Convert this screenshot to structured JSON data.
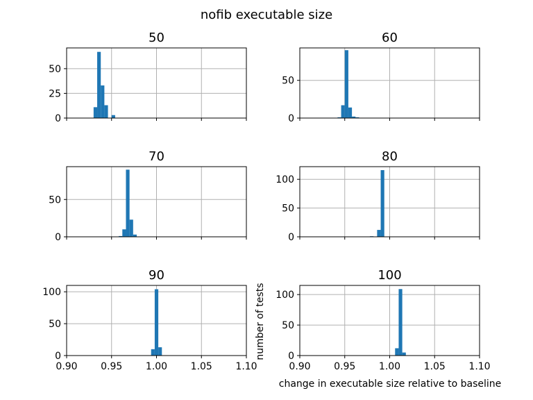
{
  "figure": {
    "title": "nofib executable size",
    "xlabel": "change in executable size relative to baseline",
    "ylabel": "number of tests"
  },
  "colors": {
    "bar": "#1f77b4",
    "grid": "#b0b0b0"
  },
  "chart_data": [
    {
      "type": "bar",
      "title": "50",
      "xlim": [
        0.9,
        1.1
      ],
      "ylim": [
        0,
        71
      ],
      "xticks": [
        "0.90",
        "0.95",
        "1.00",
        "1.05",
        "1.10"
      ],
      "yticks": [
        0,
        25,
        50
      ],
      "grid": true,
      "bin_width": 0.004,
      "bins": [
        {
          "x": 0.93,
          "value": 11
        },
        {
          "x": 0.934,
          "value": 67
        },
        {
          "x": 0.938,
          "value": 33
        },
        {
          "x": 0.942,
          "value": 13
        },
        {
          "x": 0.95,
          "value": 3
        }
      ]
    },
    {
      "type": "bar",
      "title": "60",
      "xlim": [
        0.9,
        1.1
      ],
      "ylim": [
        0,
        93
      ],
      "xticks": [
        "0.90",
        "0.95",
        "1.00",
        "1.05",
        "1.10"
      ],
      "yticks": [
        0,
        50
      ],
      "grid": true,
      "bin_width": 0.004,
      "bins": [
        {
          "x": 0.942,
          "value": 1
        },
        {
          "x": 0.946,
          "value": 17
        },
        {
          "x": 0.95,
          "value": 90
        },
        {
          "x": 0.954,
          "value": 14
        },
        {
          "x": 0.958,
          "value": 2
        },
        {
          "x": 0.962,
          "value": 1
        }
      ]
    },
    {
      "type": "bar",
      "title": "70",
      "xlim": [
        0.9,
        1.1
      ],
      "ylim": [
        0,
        94
      ],
      "xticks": [
        "0.90",
        "0.95",
        "1.00",
        "1.05",
        "1.10"
      ],
      "yticks": [
        0,
        50
      ],
      "grid": true,
      "bin_width": 0.004,
      "bins": [
        {
          "x": 0.958,
          "value": 1
        },
        {
          "x": 0.962,
          "value": 10
        },
        {
          "x": 0.966,
          "value": 90
        },
        {
          "x": 0.97,
          "value": 23
        },
        {
          "x": 0.974,
          "value": 3
        }
      ]
    },
    {
      "type": "bar",
      "title": "80",
      "xlim": [
        0.9,
        1.1
      ],
      "ylim": [
        0,
        122
      ],
      "xticks": [
        "0.90",
        "0.95",
        "1.00",
        "1.05",
        "1.10"
      ],
      "yticks": [
        0,
        50,
        100
      ],
      "grid": true,
      "bin_width": 0.004,
      "bins": [
        {
          "x": 0.978,
          "value": 1
        },
        {
          "x": 0.986,
          "value": 12
        },
        {
          "x": 0.99,
          "value": 116
        }
      ]
    },
    {
      "type": "bar",
      "title": "90",
      "xlim": [
        0.9,
        1.1
      ],
      "ylim": [
        0,
        110
      ],
      "xticks": [
        "0.90",
        "0.95",
        "1.00",
        "1.05",
        "1.10"
      ],
      "yticks": [
        0,
        50,
        100
      ],
      "grid": true,
      "bin_width": 0.004,
      "bins": [
        {
          "x": 0.994,
          "value": 10
        },
        {
          "x": 0.998,
          "value": 104
        },
        {
          "x": 1.002,
          "value": 13
        }
      ]
    },
    {
      "type": "bar",
      "title": "100",
      "xlim": [
        0.9,
        1.1
      ],
      "ylim": [
        0,
        115
      ],
      "xticks": [
        "0.90",
        "0.95",
        "1.00",
        "1.05",
        "1.10"
      ],
      "yticks": [
        0,
        50,
        100
      ],
      "grid": true,
      "bin_width": 0.004,
      "bins": [
        {
          "x": 1.006,
          "value": 12
        },
        {
          "x": 1.01,
          "value": 109
        },
        {
          "x": 1.014,
          "value": 5
        }
      ]
    }
  ]
}
